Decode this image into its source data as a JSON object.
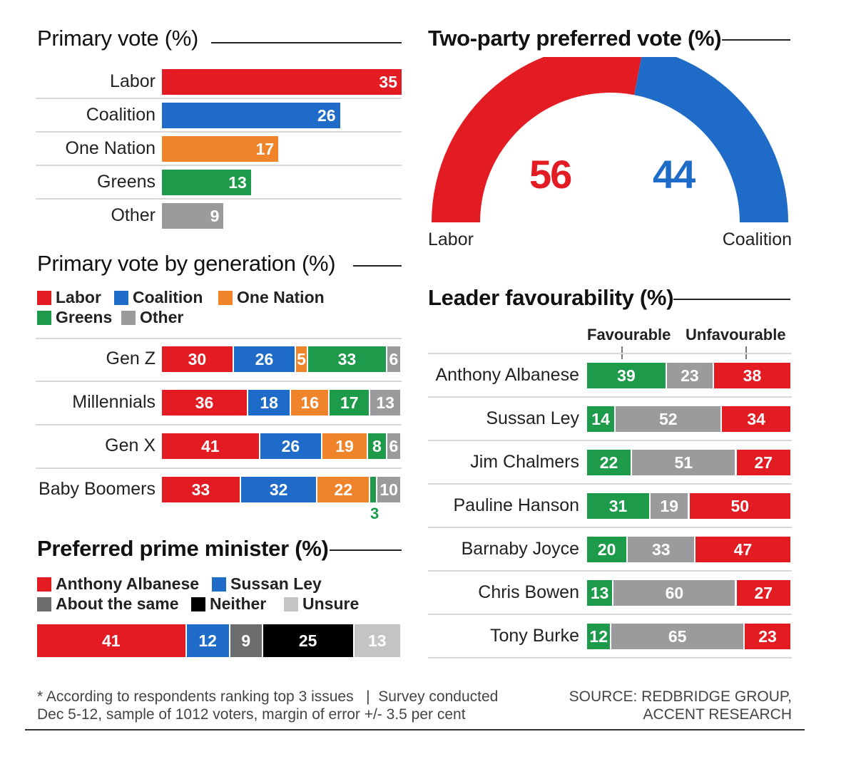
{
  "colors": {
    "labor": "#e31b23",
    "coalition": "#1e6cc8",
    "one_nation": "#f0842a",
    "greens": "#1e9a4b",
    "other": "#9b9b9d",
    "about_same": "#6d6d6f",
    "neither": "#000000",
    "unsure": "#c4c4c6"
  },
  "primary_vote": {
    "title": "Primary vote (%)"
  },
  "two_party": {
    "title": "Two-party preferred vote (%)",
    "left_label": "Labor",
    "right_label": "Coalition"
  },
  "generation": {
    "title": "Primary vote by generation (%)",
    "legend": [
      "Labor",
      "Coalition",
      "One Nation",
      "Greens",
      "Other"
    ],
    "boomer_greens_note": "3"
  },
  "preferred_pm": {
    "title": "Preferred prime minister (%)",
    "legend": [
      "Anthony Albanese",
      "Sussan Ley",
      "About the same",
      "Neither",
      "Unsure"
    ]
  },
  "leader": {
    "title": "Leader favourability (%)",
    "favourable_label": "Favourable",
    "unfavourable_label": "Unfavourable"
  },
  "footer": {
    "note_line1": "* According to respondents ranking top 3 issues   |  Survey conducted",
    "note_line2": "Dec 5-12, sample of 1012 voters, margin of error +/- 3.5 per cent",
    "source_line1": "SOURCE: REDBRIDGE GROUP,",
    "source_line2": "ACCENT RESEARCH"
  },
  "chart_data": [
    {
      "type": "bar",
      "title": "Primary vote (%)",
      "categories": [
        "Labor",
        "Coalition",
        "One Nation",
        "Greens",
        "Other"
      ],
      "values": [
        35,
        26,
        17,
        13,
        9
      ]
    },
    {
      "type": "pie",
      "title": "Two-party preferred vote (%)",
      "categories": [
        "Labor",
        "Coalition"
      ],
      "values": [
        56,
        44
      ]
    },
    {
      "type": "bar",
      "title": "Primary vote by generation (%)",
      "stacked": true,
      "categories": [
        "Gen Z",
        "Millennials",
        "Gen X",
        "Baby Boomers"
      ],
      "series": [
        {
          "name": "Labor",
          "values": [
            30,
            36,
            41,
            33
          ]
        },
        {
          "name": "Coalition",
          "values": [
            26,
            18,
            26,
            32
          ]
        },
        {
          "name": "One Nation",
          "values": [
            5,
            16,
            19,
            22
          ]
        },
        {
          "name": "Greens",
          "values": [
            33,
            17,
            8,
            3
          ]
        },
        {
          "name": "Other",
          "values": [
            6,
            13,
            6,
            10
          ]
        }
      ]
    },
    {
      "type": "bar",
      "title": "Preferred prime minister (%)",
      "stacked": true,
      "series": [
        {
          "name": "Anthony Albanese",
          "values": [
            41
          ]
        },
        {
          "name": "Sussan Ley",
          "values": [
            12
          ]
        },
        {
          "name": "About the same",
          "values": [
            9
          ]
        },
        {
          "name": "Neither",
          "values": [
            25
          ]
        },
        {
          "name": "Unsure",
          "values": [
            13
          ]
        }
      ]
    },
    {
      "type": "bar",
      "title": "Leader favourability (%)",
      "stacked": true,
      "categories": [
        "Anthony Albanese",
        "Sussan Ley",
        "Jim Chalmers",
        "Pauline Hanson",
        "Barnaby Joyce",
        "Chris Bowen",
        "Tony Burke"
      ],
      "series": [
        {
          "name": "Favourable",
          "values": [
            39,
            14,
            22,
            31,
            20,
            13,
            12
          ]
        },
        {
          "values": [
            23,
            52,
            51,
            19,
            33,
            60,
            65
          ]
        },
        {
          "name": "Unfavourable",
          "values": [
            38,
            34,
            27,
            50,
            47,
            27,
            23
          ]
        }
      ]
    }
  ]
}
